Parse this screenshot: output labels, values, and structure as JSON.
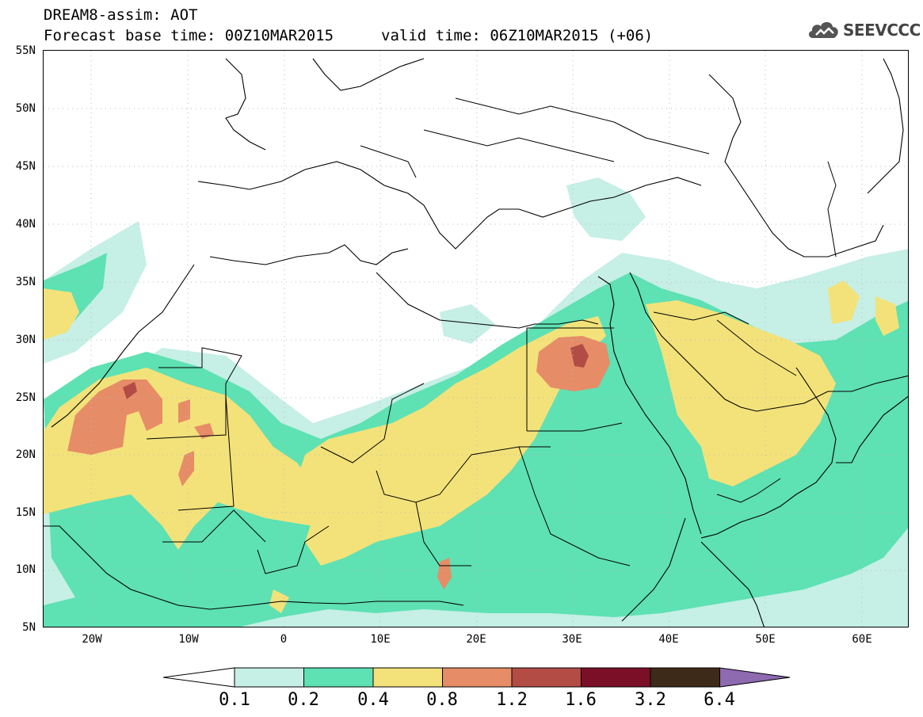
{
  "header": {
    "model_line": "DREAM8-assim: AOT",
    "base_time": "Forecast base time: 00Z10MAR2015",
    "valid_time": "valid time: 06Z10MAR2015 (+06)"
  },
  "logo": {
    "text": "SEEVCCC",
    "icon": "cloud-logo-icon"
  },
  "map": {
    "lat_range": [
      "5N",
      "55N"
    ],
    "lon_range": [
      "25W",
      "65E"
    ],
    "lat_labels": [
      "55N",
      "50N",
      "45N",
      "40N",
      "35N",
      "30N",
      "25N",
      "20N",
      "15N",
      "10N",
      "5N"
    ],
    "lon_labels": [
      "20W",
      "10W",
      "0",
      "10E",
      "20E",
      "30E",
      "40E",
      "50E",
      "60E"
    ],
    "grid": true
  },
  "colorbar": {
    "levels": [
      "0.1",
      "0.2",
      "0.4",
      "0.8",
      "1.2",
      "1.6",
      "3.2",
      "6.4"
    ],
    "colors": {
      "under": "#ffffff",
      "c1": "#c6efe6",
      "c2": "#5ee1b3",
      "c3": "#f3e27a",
      "c4": "#e68c67",
      "c5": "#b24c45",
      "c6": "#7a0f27",
      "c7": "#3e2a18",
      "over": "#8e6ab1"
    }
  }
}
